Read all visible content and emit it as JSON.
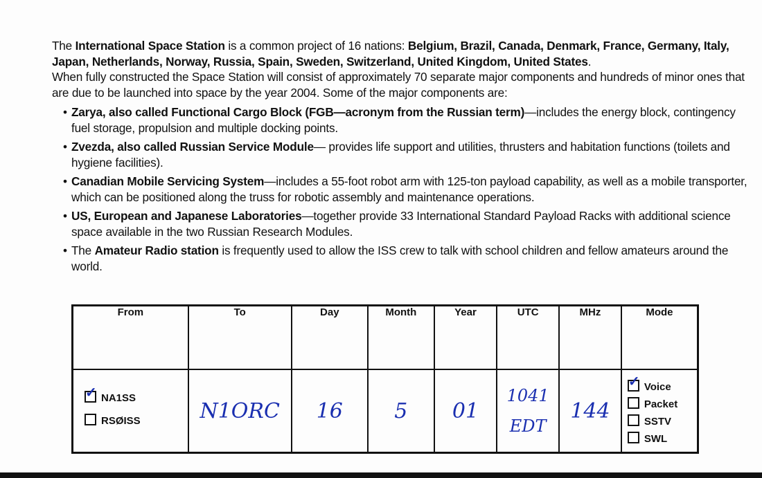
{
  "intro": {
    "p1_a": "The ",
    "p1_b": "International Space Station",
    "p1_c": " is a common project of 16 nations: ",
    "p1_d": "Belgium, Brazil, Canada, Denmark, France, Germany, Italy, Japan, Netherlands, Norway, Russia, Spain, Sweden, Switzerland, United Kingdom, United States",
    "p1_e": ".",
    "p2": "When fully constructed the Space Station will consist of approximately 70 separate major components and hundreds of minor ones that are due to be launched into space by the year 2004.  Some of the major components are:"
  },
  "bullets": [
    {
      "bold": "Zarya, also called Functional Cargo Block (FGB—acronym from the Russian term)",
      "text": "—includes the energy block, contingency fuel storage, propulsion and multiple docking points."
    },
    {
      "bold": "Zvezda, also called Russian Service Module",
      "text": "— provides life support and utilities, thrusters and habitation functions (toilets and hygiene facilities)."
    },
    {
      "bold": "Canadian Mobile Servicing System",
      "text": "—includes a 55-foot robot arm with 125-ton payload capability, as well as a mobile transporter, which can be positioned along the truss for robotic assembly and maintenance operations."
    },
    {
      "bold": "US, European and Japanese Laboratories",
      "text": "—together provide 33 International Standard Payload Racks with additional science space available in the two Russian Research Modules."
    },
    {
      "pre": "The ",
      "bold": "Amateur Radio station",
      "text": " is frequently used to allow the ISS crew to talk with school children and fellow amateurs around the world."
    }
  ],
  "table": {
    "headers": [
      "From",
      "To",
      "Day",
      "Month",
      "Year",
      "UTC",
      "MHz",
      "Mode"
    ],
    "from_options": [
      {
        "label": "NA1SS",
        "checked": true
      },
      {
        "label": "RSØISS",
        "checked": false
      }
    ],
    "to": "N1ORC",
    "day": "16",
    "month": "5",
    "year": "01",
    "utc_line1": "1041",
    "utc_line2": "EDT",
    "mhz": "144",
    "mode_options": [
      {
        "label": "Voice",
        "checked": true
      },
      {
        "label": "Packet",
        "checked": false
      },
      {
        "label": "SSTV",
        "checked": false
      },
      {
        "label": "SWL",
        "checked": false
      }
    ]
  },
  "colors": {
    "ink": "#1a2fb0"
  }
}
